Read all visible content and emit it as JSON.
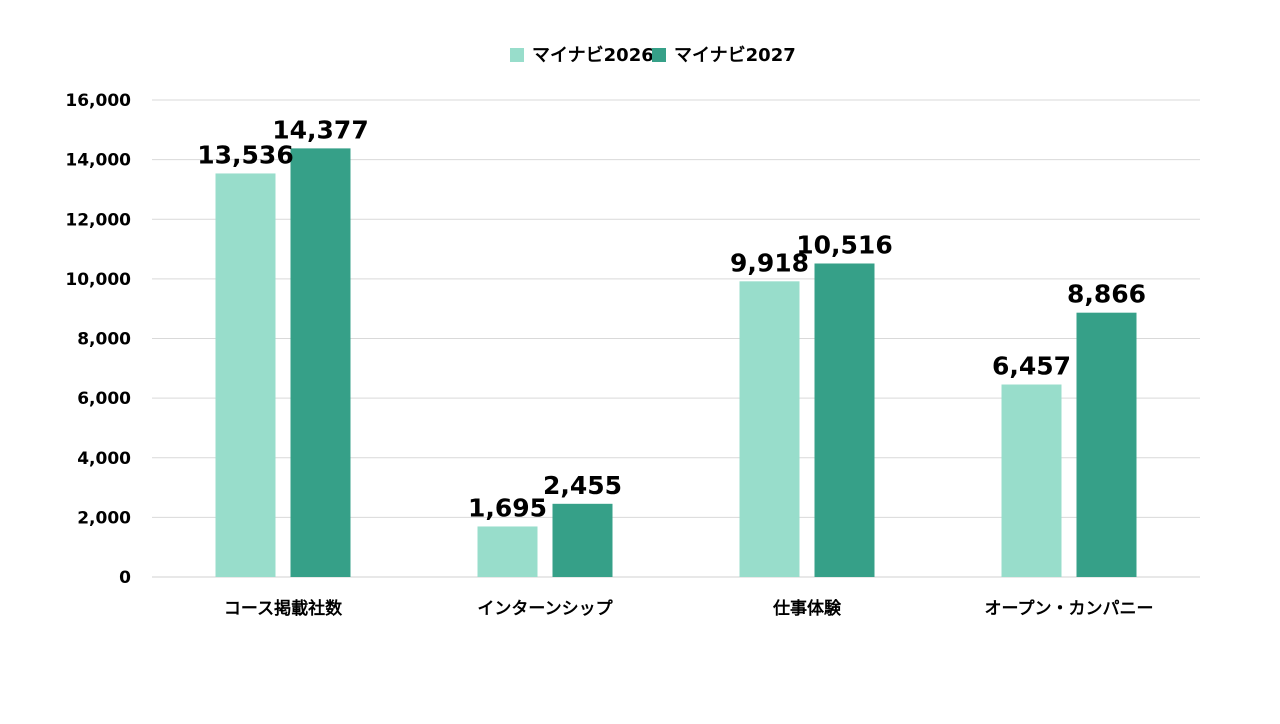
{
  "chart_data": {
    "type": "bar",
    "title": "",
    "xlabel": "",
    "ylabel": "",
    "categories": [
      "コース掲載社数",
      "インターンシップ",
      "仕事体験",
      "オープン・カンパニー"
    ],
    "series": [
      {
        "name": "マイナビ2026",
        "values": [
          13536,
          1695,
          9918,
          6457
        ],
        "labels": [
          "13,536",
          "1,695",
          "9,918",
          "6,457"
        ],
        "color": "#98ddcb"
      },
      {
        "name": "マイナビ2027",
        "values": [
          14377,
          2455,
          10516,
          8866
        ],
        "labels": [
          "14,377",
          "2,455",
          "10,516",
          "8,866"
        ],
        "color": "#36a088"
      }
    ],
    "ylim": [
      0,
      16000
    ],
    "yticks": [
      0,
      2000,
      4000,
      6000,
      8000,
      10000,
      12000,
      14000,
      16000
    ],
    "ytick_labels": [
      "0",
      "2,000",
      "4,000",
      "6,000",
      "8,000",
      "10,000",
      "12,000",
      "14,000",
      "16,000"
    ],
    "grid": true,
    "legend_position": "top-center",
    "gridline_color": "#d9d9d9",
    "text_color": "#000000"
  }
}
